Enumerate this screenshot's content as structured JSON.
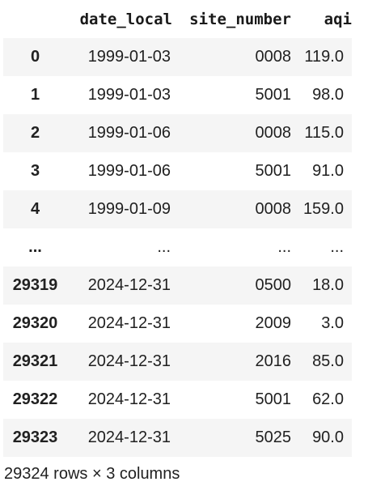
{
  "table": {
    "columns": [
      "",
      "date_local",
      "site_number",
      "aqi"
    ],
    "rows": [
      {
        "index": "0",
        "date_local": "1999-01-03",
        "site_number": "0008",
        "aqi": "119.0"
      },
      {
        "index": "1",
        "date_local": "1999-01-03",
        "site_number": "5001",
        "aqi": "98.0"
      },
      {
        "index": "2",
        "date_local": "1999-01-06",
        "site_number": "0008",
        "aqi": "115.0"
      },
      {
        "index": "3",
        "date_local": "1999-01-06",
        "site_number": "5001",
        "aqi": "91.0"
      },
      {
        "index": "4",
        "date_local": "1999-01-09",
        "site_number": "0008",
        "aqi": "159.0"
      },
      {
        "index": "...",
        "date_local": "...",
        "site_number": "...",
        "aqi": "..."
      },
      {
        "index": "29319",
        "date_local": "2024-12-31",
        "site_number": "0500",
        "aqi": "18.0"
      },
      {
        "index": "29320",
        "date_local": "2024-12-31",
        "site_number": "2009",
        "aqi": "3.0"
      },
      {
        "index": "29321",
        "date_local": "2024-12-31",
        "site_number": "2016",
        "aqi": "85.0"
      },
      {
        "index": "29322",
        "date_local": "2024-12-31",
        "site_number": "5001",
        "aqi": "62.0"
      },
      {
        "index": "29323",
        "date_local": "2024-12-31",
        "site_number": "5025",
        "aqi": "90.0"
      }
    ]
  },
  "shape_text": "29324 rows × 3 columns"
}
